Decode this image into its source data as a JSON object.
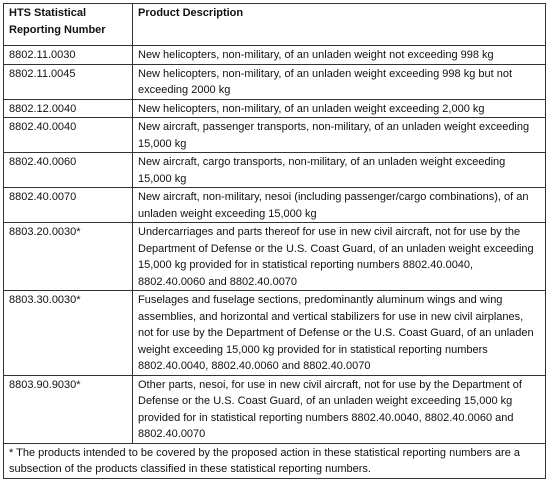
{
  "table": {
    "header": [
      "HTS Statistical Reporting Number",
      "Product Description"
    ],
    "rows": [
      [
        "8802.11.0030",
        "New helicopters, non-military, of an unladen weight not exceeding 998 kg"
      ],
      [
        "8802.11.0045",
        "New helicopters, non-military, of an unladen weight exceeding 998 kg but not exceeding 2000 kg"
      ],
      [
        "8802.12.0040",
        "New helicopters, non-military, of an unladen weight exceeding 2,000 kg"
      ],
      [
        "8802.40.0040",
        "New aircraft, passenger transports, non-military, of an unladen weight exceeding 15,000 kg"
      ],
      [
        "8802.40.0060",
        "New aircraft, cargo transports, non-military, of an unladen weight exceeding 15,000 kg"
      ],
      [
        "8802.40.0070",
        "New aircraft, non-military, nesoi (including passenger/cargo combinations), of an unladen weight exceeding 15,000 kg"
      ],
      [
        "8803.20.0030*",
        "Undercarriages and parts thereof for use in new civil aircraft, not for use by the Department of Defense or the U.S. Coast Guard, of an unladen weight exceeding 15,000 kg provided for in statistical reporting numbers 8802.40.0040, 8802.40.0060 and 8802.40.0070"
      ],
      [
        "8803.30.0030*",
        "Fuselages and fuselage sections, predominantly aluminum wings and wing assemblies, and horizontal and vertical stabilizers for use in new civil airplanes, not for use by the Department of Defense or the U.S. Coast Guard, of an unladen weight exceeding 15,000 kg provided for in statistical reporting numbers 8802.40.0040, 8802.40.0060 and 8802.40.0070"
      ],
      [
        "8803.90.9030*",
        "Other parts, nesoi, for use in new civil aircraft, not for use by the Department of Defense or the U.S. Coast Guard, of an unladen weight exceeding 15,000 kg provided for in statistical reporting numbers 8802.40.0040, 8802.40.0060 and 8802.40.0070"
      ]
    ],
    "footnote": "* The products intended to be covered by the proposed action in these statistical reporting numbers are a subsection of the products classified in these statistical reporting numbers."
  }
}
